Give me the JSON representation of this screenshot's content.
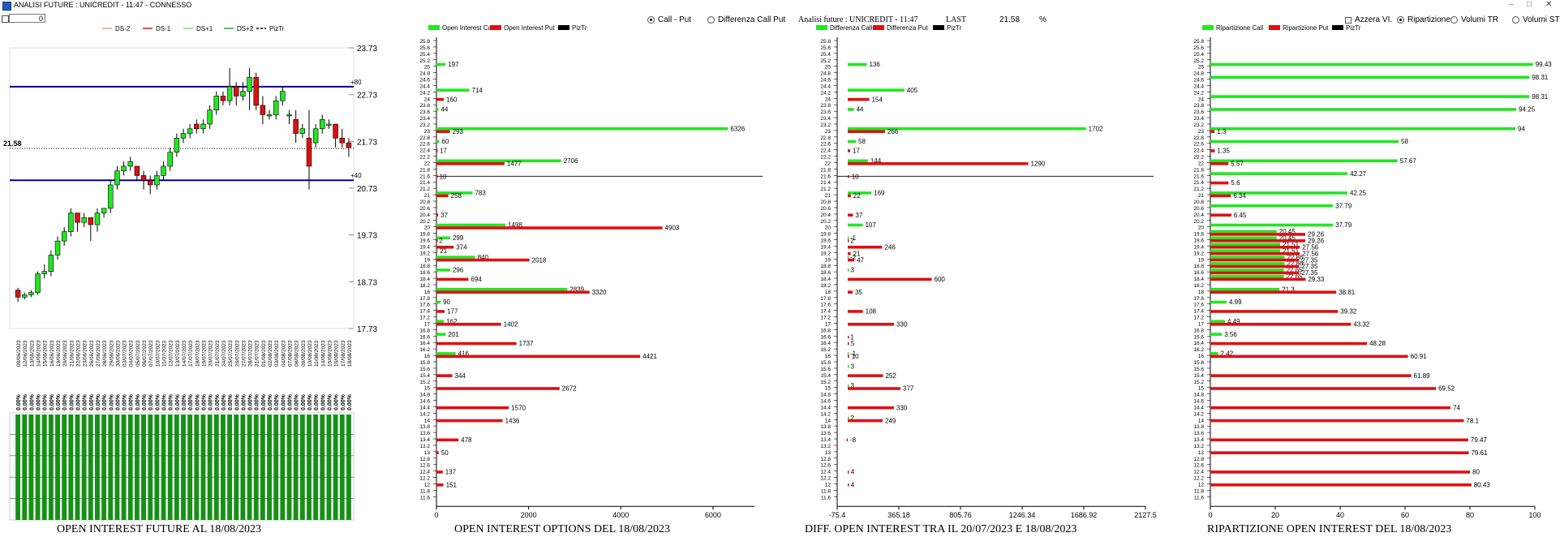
{
  "window": {
    "title": "ANALISI FUTURE : UNICREDIT - 11:47 - CONNESSO",
    "minimize": "–",
    "maximize": "□",
    "close": "✕"
  },
  "controls": {
    "spin_value": "0"
  },
  "colors": {
    "green": "#22e622",
    "red": "#dd1111",
    "dark_green": "#0b8a0b",
    "navy": "#000099"
  },
  "future": {
    "legend": [
      "DS-2",
      "DS-1",
      "DS+1",
      "DS+2",
      "PizTr"
    ],
    "y_ticks": [
      "23.73",
      "22.73",
      "21.73",
      "20.73",
      "19.73",
      "18.73",
      "17.73"
    ],
    "ref_lines": {
      "upper": "+80",
      "lower": "+40",
      "upper_value": 22.9,
      "lower_value": 20.9
    },
    "current_label": "21.58",
    "current_value": 21.58,
    "dates": [
      "09/06/2023",
      "12/06/2023",
      "13/06/2023",
      "14/06/2023",
      "15/06/2023",
      "16/06/2023",
      "19/06/2023",
      "20/06/2023",
      "21/06/2023",
      "22/06/2023",
      "23/06/2023",
      "26/06/2023",
      "27/06/2023",
      "28/06/2023",
      "29/06/2023",
      "30/06/2023",
      "03/07/2023",
      "04/07/2023",
      "05/07/2023",
      "06/07/2023",
      "07/07/2023",
      "10/07/2023",
      "11/07/2023",
      "12/07/2023",
      "13/07/2023",
      "14/07/2023",
      "17/07/2023",
      "18/07/2023",
      "19/07/2023",
      "20/07/2023",
      "21/07/2023",
      "24/07/2023",
      "25/07/2023",
      "26/07/2023",
      "27/07/2023",
      "28/07/2023",
      "31/07/2023",
      "01/08/2023",
      "02/08/2023",
      "03/08/2023",
      "04/08/2023",
      "07/08/2023",
      "08/08/2023",
      "09/08/2023",
      "10/08/2023",
      "11/08/2023",
      "14/08/2023",
      "15/08/2023",
      "16/08/2023",
      "17/08/2023",
      "18/08/2023"
    ],
    "candles": [
      [
        18.55,
        18.6,
        18.4,
        18.3
      ],
      [
        18.4,
        18.5,
        18.45,
        18.35
      ],
      [
        18.45,
        18.55,
        18.5,
        18.4
      ],
      [
        18.5,
        18.95,
        18.9,
        18.45
      ],
      [
        18.9,
        19.1,
        18.95,
        18.8
      ],
      [
        18.95,
        19.4,
        19.3,
        18.85
      ],
      [
        19.3,
        19.7,
        19.6,
        19.2
      ],
      [
        19.6,
        19.9,
        19.8,
        19.5
      ],
      [
        19.8,
        20.3,
        20.2,
        19.7
      ],
      [
        20.2,
        20.2,
        20.0,
        19.8
      ],
      [
        20.0,
        20.2,
        20.1,
        19.9
      ],
      [
        20.1,
        20.1,
        19.95,
        19.6
      ],
      [
        19.95,
        20.3,
        20.2,
        19.8
      ],
      [
        20.2,
        20.3,
        20.3,
        20.1
      ],
      [
        20.3,
        20.9,
        20.8,
        20.2
      ],
      [
        20.8,
        21.2,
        21.1,
        20.7
      ],
      [
        21.1,
        21.3,
        21.2,
        21.0
      ],
      [
        21.2,
        21.4,
        21.3,
        21.1
      ],
      [
        21.2,
        21.2,
        21.0,
        20.9
      ],
      [
        21.0,
        21.1,
        20.9,
        20.7
      ],
      [
        20.9,
        21.0,
        20.8,
        20.6
      ],
      [
        20.8,
        21.1,
        21.0,
        20.7
      ],
      [
        21.0,
        21.3,
        21.2,
        20.9
      ],
      [
        21.2,
        21.6,
        21.5,
        21.1
      ],
      [
        21.5,
        21.9,
        21.8,
        21.4
      ],
      [
        21.8,
        22.0,
        21.9,
        21.7
      ],
      [
        21.9,
        22.1,
        22.0,
        21.8
      ],
      [
        22.1,
        22.2,
        22.0,
        21.9
      ],
      [
        22.0,
        22.2,
        22.1,
        21.9
      ],
      [
        22.1,
        22.5,
        22.4,
        22.0
      ],
      [
        22.4,
        22.8,
        22.7,
        22.3
      ],
      [
        22.7,
        22.8,
        22.6,
        22.5
      ],
      [
        22.6,
        23.3,
        22.9,
        22.5
      ],
      [
        22.9,
        23.0,
        22.7,
        22.5
      ],
      [
        22.7,
        23.0,
        22.8,
        22.6
      ],
      [
        22.8,
        23.3,
        23.1,
        22.4
      ],
      [
        23.1,
        23.2,
        22.5,
        22.4
      ],
      [
        22.5,
        22.7,
        22.3,
        22.1
      ],
      [
        22.3,
        22.4,
        22.3,
        22.2
      ],
      [
        22.3,
        22.7,
        22.6,
        22.2
      ],
      [
        22.6,
        22.9,
        22.8,
        22.5
      ],
      [
        22.3,
        22.4,
        22.3,
        22.1
      ],
      [
        22.2,
        22.4,
        21.9,
        21.7
      ],
      [
        21.9,
        22.1,
        22.0,
        21.8
      ],
      [
        21.8,
        22.4,
        21.2,
        20.7
      ],
      [
        21.7,
        22.1,
        22.0,
        21.6
      ],
      [
        22.0,
        22.3,
        22.2,
        21.9
      ],
      [
        22.1,
        22.2,
        22.1,
        22.0
      ],
      [
        22.1,
        22.1,
        21.8,
        21.6
      ],
      [
        21.8,
        22.0,
        21.7,
        21.6
      ],
      [
        21.7,
        21.8,
        21.6,
        21.4
      ]
    ],
    "pct_label": "0.00%",
    "title": "OPEN INTEREST FUTURE AL 18/08/2023"
  },
  "strikes": [
    "25.8",
    "25.6",
    "25.4",
    "25.2",
    "25",
    "24.8",
    "24.6",
    "24.4",
    "24.2",
    "24",
    "23.8",
    "23.6",
    "23.4",
    "23.2",
    "23",
    "22.8",
    "22.6",
    "22.4",
    "22.2",
    "22",
    "21.8",
    "21.6",
    "21.4",
    "21.2",
    "21",
    "20.8",
    "20.6",
    "20.4",
    "20.2",
    "20",
    "19.8",
    "19.6",
    "19.4",
    "19.2",
    "19",
    "18.8",
    "18.6",
    "18.4",
    "18.2",
    "18",
    "17.8",
    "17.6",
    "17.4",
    "17.2",
    "17",
    "16.8",
    "16.6",
    "16.4",
    "16.2",
    "16",
    "15.8",
    "15.6",
    "15.4",
    "15.2",
    "15",
    "14.8",
    "14.6",
    "14.4",
    "14.2",
    "14",
    "13.8",
    "13.6",
    "13.4",
    "13.2",
    "13",
    "12.8",
    "12.6",
    "12.4",
    "12.2",
    "12",
    "11.8",
    "11.6"
  ],
  "options": {
    "legend": [
      "Open Interest Call",
      "Open Interest Put",
      "PizTr"
    ],
    "radio": [
      "Call - Put",
      "Differenza Call Put"
    ],
    "x_ticks": [
      "0",
      "2000",
      "4000",
      "6000"
    ],
    "x_range": [
      0,
      6900
    ],
    "calls": [
      [
        "25",
        197
      ],
      [
        "24.2",
        714
      ],
      [
        "23.6",
        44
      ],
      [
        "23",
        6326
      ],
      [
        "22.6",
        60
      ],
      [
        "22",
        2706
      ],
      [
        "21",
        783
      ],
      [
        "20",
        1498
      ],
      [
        "19.6",
        299
      ],
      [
        "19.2",
        21
      ],
      [
        "19",
        840
      ],
      [
        "18.6",
        296
      ],
      [
        "18",
        2839
      ],
      [
        "17.6",
        90
      ],
      [
        "17",
        162
      ],
      [
        "16.6",
        201
      ],
      [
        "16",
        416
      ]
    ],
    "puts": [
      [
        "24",
        160
      ],
      [
        "23",
        293
      ],
      [
        "22.4",
        17
      ],
      [
        "22",
        1477
      ],
      [
        "21.6",
        10
      ],
      [
        "21",
        258
      ],
      [
        "20.4",
        37
      ],
      [
        "20",
        4903
      ],
      [
        "19.6",
        2
      ],
      [
        "19.4",
        374
      ],
      [
        "19",
        2018
      ],
      [
        "18.4",
        694
      ],
      [
        "18",
        3320
      ],
      [
        "17.4",
        177
      ],
      [
        "17",
        1402
      ],
      [
        "16.4",
        1737
      ],
      [
        "16",
        4421
      ],
      [
        "15.4",
        344
      ],
      [
        "15",
        2672
      ],
      [
        "14.4",
        1570
      ],
      [
        "14",
        1436
      ],
      [
        "13.4",
        478
      ],
      [
        "13",
        50
      ],
      [
        "12.4",
        137
      ],
      [
        "12",
        151
      ]
    ],
    "title": "OPEN INTEREST OPTIONS DEL 18/08/2023"
  },
  "diff": {
    "header": {
      "title": "Analisi future : UNICREDIT - 11:47",
      "last_label": "LAST",
      "last_value": "21.58",
      "pct": "%"
    },
    "legend": [
      "Differenza Call",
      "Differenza Put",
      "PizTr"
    ],
    "x_ticks": [
      "-75.4",
      "365.18",
      "805.76",
      "1246.34",
      "1686.92",
      "2127.5"
    ],
    "x_range": [
      -75.4,
      2127.5
    ],
    "calls": [
      [
        "25",
        136
      ],
      [
        "24.2",
        405
      ],
      [
        "23.6",
        44
      ],
      [
        "23",
        1702
      ],
      [
        "22.6",
        58
      ],
      [
        "22",
        144
      ],
      [
        "21",
        169
      ],
      [
        "20",
        107
      ],
      [
        "19.6",
        -1
      ],
      [
        "19",
        -2
      ],
      [
        "18.6",
        3
      ],
      [
        "16",
        -1
      ],
      [
        "15.6",
        3
      ],
      [
        "15",
        3
      ],
      [
        "14",
        2
      ]
    ],
    "puts": [
      [
        "24",
        154
      ],
      [
        "23",
        266
      ],
      [
        "22.4",
        17
      ],
      [
        "22",
        1290
      ],
      [
        "21.6",
        10
      ],
      [
        "21",
        22
      ],
      [
        "20.4",
        37
      ],
      [
        "19.6",
        2
      ],
      [
        "19.4",
        246
      ],
      [
        "19.2",
        21
      ],
      [
        "19",
        47
      ],
      [
        "18.4",
        600
      ],
      [
        "18",
        35
      ],
      [
        "17.4",
        108
      ],
      [
        "17",
        330
      ],
      [
        "16.6",
        1
      ],
      [
        "16.4",
        5
      ],
      [
        "16",
        10
      ],
      [
        "15.4",
        252
      ],
      [
        "15",
        377
      ],
      [
        "14.4",
        330
      ],
      [
        "14",
        249
      ],
      [
        "13.4",
        -8
      ],
      [
        "12.4",
        4
      ],
      [
        "12",
        4
      ]
    ],
    "title": "DIFF. OPEN INTEREST TRA IL 20/07/2023 E 18/08/2023"
  },
  "ripartizione": {
    "legend": [
      "Ripartizione Call",
      "Ripartizione Put",
      "PizTr"
    ],
    "checkbox": "Azzera VI.",
    "radio": [
      "Ripartizione",
      "Volumi TR",
      "Volumi ST"
    ],
    "x_ticks": [
      "0",
      "20",
      "40",
      "60",
      "80",
      "100"
    ],
    "x_range": [
      0,
      100
    ],
    "calls": [
      [
        "25",
        99.43
      ],
      [
        "24.6",
        98.31
      ],
      [
        "24",
        98.31
      ],
      [
        "23.6",
        94.25
      ],
      [
        "23",
        94
      ],
      [
        "22.6",
        58
      ],
      [
        "22",
        57.67
      ],
      [
        "21.6",
        42.27
      ],
      [
        "21",
        42.25
      ],
      [
        "20.6",
        37.79
      ],
      [
        "20",
        37.79
      ],
      [
        "19.8",
        20.45
      ],
      [
        "19.6",
        20.45
      ],
      [
        "19.4",
        21.51
      ],
      [
        "19.2",
        21.51
      ],
      [
        "19",
        22.86
      ],
      [
        "18.8",
        22.86
      ],
      [
        "18.6",
        22.65
      ],
      [
        "18.4",
        22.65
      ],
      [
        "18",
        21.3
      ],
      [
        "17.6",
        4.99
      ],
      [
        "17",
        4.49
      ],
      [
        "16.6",
        3.56
      ],
      [
        "16",
        2.42
      ]
    ],
    "puts": [
      [
        "23",
        1.3
      ],
      [
        "22.4",
        1.35
      ],
      [
        "22",
        5.57
      ],
      [
        "21.4",
        5.6
      ],
      [
        "21",
        6.34
      ],
      [
        "20.4",
        6.45
      ],
      [
        "19.8",
        29.26
      ],
      [
        "19.6",
        29.26
      ],
      [
        "19.4",
        27.56
      ],
      [
        "19.2",
        27.56
      ],
      [
        "19",
        27.35
      ],
      [
        "18.8",
        27.35
      ],
      [
        "18.6",
        27.35
      ],
      [
        "18.4",
        29.33
      ],
      [
        "18",
        38.81
      ],
      [
        "17.4",
        39.32
      ],
      [
        "17",
        43.32
      ],
      [
        "16.4",
        48.28
      ],
      [
        "16",
        60.91
      ],
      [
        "15.4",
        61.89
      ],
      [
        "15",
        69.52
      ],
      [
        "14.4",
        74
      ],
      [
        "14",
        78.1
      ],
      [
        "13.4",
        79.47
      ],
      [
        "13",
        79.61
      ],
      [
        "12.4",
        80
      ],
      [
        "12",
        80.43
      ]
    ],
    "title": "RIPARTIZIONE OPEN INTEREST DEL 18/08/2023"
  }
}
